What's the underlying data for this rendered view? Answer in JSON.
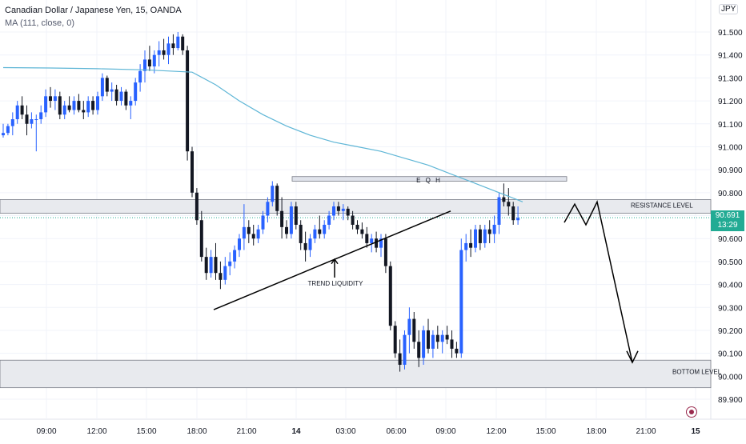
{
  "header": {
    "title": "Canadian Dollar / Japanese Yen, 15, OANDA",
    "indicator": "MA (111, close, 0)",
    "currency": "JPY"
  },
  "price_tag": {
    "price": "90.691",
    "countdown": "13:29",
    "color": "#22ab94"
  },
  "colors": {
    "bull": "#2962ff",
    "bear": "#131722",
    "ma": "#5fb6d6",
    "grid": "#f0f3fa",
    "zone": "#e8eaee"
  },
  "chart_data": {
    "type": "candlestick",
    "title": "Canadian Dollar / Japanese Yen, 15, OANDA",
    "ylim": [
      89.86,
      91.6
    ],
    "y_ticks": [
      "91.500",
      "91.400",
      "91.300",
      "91.200",
      "91.100",
      "91.000",
      "90.900",
      "90.800",
      "90.700",
      "90.600",
      "90.500",
      "90.400",
      "90.300",
      "90.200",
      "90.100",
      "90.000",
      "89.900"
    ],
    "x_ticks": [
      "09:00",
      "12:00",
      "15:00",
      "18:00",
      "21:00",
      "14",
      "03:00",
      "06:00",
      "09:00",
      "12:00",
      "15:00",
      "18:00",
      "21:00",
      "15"
    ],
    "ohlc": [
      [
        91.05,
        91.1,
        91.04,
        91.06
      ],
      [
        91.06,
        91.1,
        91.05,
        91.09
      ],
      [
        91.09,
        91.15,
        91.05,
        91.12
      ],
      [
        91.12,
        91.2,
        91.1,
        91.18
      ],
      [
        91.18,
        91.22,
        91.12,
        91.14
      ],
      [
        91.14,
        91.18,
        91.05,
        91.1
      ],
      [
        91.1,
        91.15,
        91.08,
        91.12
      ],
      [
        91.12,
        91.14,
        90.98,
        91.12
      ],
      [
        91.12,
        91.18,
        91.1,
        91.15
      ],
      [
        91.15,
        91.25,
        91.13,
        91.22
      ],
      [
        91.22,
        91.26,
        91.17,
        91.2
      ],
      [
        91.2,
        91.25,
        91.16,
        91.22
      ],
      [
        91.22,
        91.24,
        91.12,
        91.14
      ],
      [
        91.14,
        91.2,
        91.12,
        91.18
      ],
      [
        91.18,
        91.22,
        91.15,
        91.16
      ],
      [
        91.16,
        91.22,
        91.14,
        91.2
      ],
      [
        91.2,
        91.23,
        91.15,
        91.16
      ],
      [
        91.16,
        91.2,
        91.12,
        91.15
      ],
      [
        91.15,
        91.22,
        91.13,
        91.2
      ],
      [
        91.2,
        91.22,
        91.14,
        91.16
      ],
      [
        91.16,
        91.24,
        91.14,
        91.22
      ],
      [
        91.22,
        91.32,
        91.2,
        91.3
      ],
      [
        91.3,
        91.31,
        91.22,
        91.24
      ],
      [
        91.24,
        91.28,
        91.2,
        91.25
      ],
      [
        91.25,
        91.27,
        91.18,
        91.2
      ],
      [
        91.2,
        91.26,
        91.18,
        91.24
      ],
      [
        91.24,
        91.25,
        91.16,
        91.18
      ],
      [
        91.18,
        91.22,
        91.12,
        91.2
      ],
      [
        91.2,
        91.3,
        91.18,
        91.28
      ],
      [
        91.28,
        91.36,
        91.24,
        91.33
      ],
      [
        91.33,
        91.42,
        91.28,
        91.38
      ],
      [
        91.38,
        91.44,
        91.33,
        91.35
      ],
      [
        91.35,
        91.42,
        91.32,
        91.4
      ],
      [
        91.4,
        91.46,
        91.35,
        91.42
      ],
      [
        91.42,
        91.47,
        91.38,
        91.4
      ],
      [
        91.4,
        91.48,
        91.36,
        91.45
      ],
      [
        91.45,
        91.49,
        91.4,
        91.43
      ],
      [
        91.43,
        91.5,
        91.42,
        91.48
      ],
      [
        91.48,
        91.49,
        91.4,
        91.42
      ],
      [
        91.42,
        91.44,
        90.94,
        90.98
      ],
      [
        90.98,
        91.0,
        90.78,
        90.8
      ],
      [
        90.8,
        90.82,
        90.66,
        90.68
      ],
      [
        90.68,
        90.72,
        90.5,
        90.52
      ],
      [
        90.52,
        90.56,
        90.42,
        90.45
      ],
      [
        90.45,
        90.55,
        90.43,
        90.52
      ],
      [
        90.52,
        90.58,
        90.42,
        90.45
      ],
      [
        90.45,
        90.5,
        90.38,
        90.42
      ],
      [
        90.42,
        90.52,
        90.4,
        90.48
      ],
      [
        90.48,
        90.54,
        90.44,
        90.5
      ],
      [
        90.5,
        90.57,
        90.47,
        90.55
      ],
      [
        90.55,
        90.62,
        90.52,
        90.6
      ],
      [
        90.6,
        90.75,
        90.55,
        90.65
      ],
      [
        90.65,
        90.68,
        90.58,
        90.62
      ],
      [
        90.62,
        90.66,
        90.57,
        90.6
      ],
      [
        90.6,
        90.66,
        90.58,
        90.64
      ],
      [
        90.64,
        90.72,
        90.62,
        90.7
      ],
      [
        90.7,
        90.78,
        90.67,
        90.76
      ],
      [
        90.76,
        90.85,
        90.74,
        90.83
      ],
      [
        90.83,
        90.84,
        90.7,
        90.72
      ],
      [
        90.72,
        90.78,
        90.6,
        90.65
      ],
      [
        90.65,
        90.68,
        90.6,
        90.62
      ],
      [
        90.62,
        90.76,
        90.6,
        90.74
      ],
      [
        90.74,
        90.76,
        90.64,
        90.66
      ],
      [
        90.66,
        90.68,
        90.55,
        90.58
      ],
      [
        90.58,
        90.63,
        90.5,
        90.55
      ],
      [
        90.55,
        90.62,
        90.52,
        90.6
      ],
      [
        90.6,
        90.66,
        90.58,
        90.64
      ],
      [
        90.64,
        90.7,
        90.6,
        90.62
      ],
      [
        90.62,
        90.68,
        90.6,
        90.66
      ],
      [
        90.66,
        90.72,
        90.64,
        90.7
      ],
      [
        90.7,
        90.76,
        90.68,
        90.74
      ],
      [
        90.74,
        90.76,
        90.7,
        90.72
      ],
      [
        90.72,
        90.75,
        90.68,
        90.73
      ],
      [
        90.73,
        90.74,
        90.68,
        90.7
      ],
      [
        90.7,
        90.72,
        90.64,
        90.66
      ],
      [
        90.66,
        90.68,
        90.62,
        90.64
      ],
      [
        90.64,
        90.67,
        90.6,
        90.62
      ],
      [
        90.62,
        90.65,
        90.56,
        90.58
      ],
      [
        90.58,
        90.62,
        90.54,
        90.6
      ],
      [
        90.6,
        90.63,
        90.54,
        90.56
      ],
      [
        90.56,
        90.62,
        90.52,
        90.6
      ],
      [
        90.6,
        90.62,
        90.45,
        90.48
      ],
      [
        90.48,
        90.5,
        90.2,
        90.22
      ],
      [
        90.22,
        90.24,
        90.08,
        90.1
      ],
      [
        90.1,
        90.16,
        90.02,
        90.05
      ],
      [
        90.05,
        90.2,
        90.03,
        90.18
      ],
      [
        90.18,
        90.3,
        90.1,
        90.25
      ],
      [
        90.25,
        90.28,
        90.12,
        90.15
      ],
      [
        90.15,
        90.2,
        90.04,
        90.08
      ],
      [
        90.08,
        90.22,
        90.05,
        90.2
      ],
      [
        90.2,
        90.25,
        90.1,
        90.12
      ],
      [
        90.12,
        90.2,
        90.08,
        90.18
      ],
      [
        90.18,
        90.22,
        90.12,
        90.15
      ],
      [
        90.15,
        90.2,
        90.1,
        90.18
      ],
      [
        90.18,
        90.22,
        90.14,
        90.16
      ],
      [
        90.16,
        90.2,
        90.08,
        90.12
      ],
      [
        90.12,
        90.15,
        90.08,
        90.1
      ],
      [
        90.1,
        90.6,
        90.08,
        90.55
      ],
      [
        90.55,
        90.62,
        90.5,
        90.58
      ],
      [
        90.58,
        90.64,
        90.52,
        90.56
      ],
      [
        90.56,
        90.66,
        90.54,
        90.64
      ],
      [
        90.64,
        90.66,
        90.55,
        90.58
      ],
      [
        90.58,
        90.66,
        90.56,
        90.64
      ],
      [
        90.64,
        90.68,
        90.58,
        90.62
      ],
      [
        90.62,
        90.7,
        90.58,
        90.66
      ],
      [
        90.66,
        90.8,
        90.62,
        90.78
      ],
      [
        90.78,
        90.84,
        90.74,
        90.76
      ],
      [
        90.76,
        90.82,
        90.7,
        90.74
      ],
      [
        90.74,
        90.76,
        90.66,
        90.68
      ],
      [
        90.68,
        90.74,
        90.66,
        90.69
      ]
    ],
    "ma": [
      [
        0,
        91.345
      ],
      [
        10,
        91.343
      ],
      [
        20,
        91.34
      ],
      [
        30,
        91.335
      ],
      [
        40,
        91.325
      ],
      [
        45,
        91.27
      ],
      [
        50,
        91.2
      ],
      [
        55,
        91.14
      ],
      [
        60,
        91.09
      ],
      [
        65,
        91.05
      ],
      [
        70,
        91.02
      ],
      [
        75,
        91.0
      ],
      [
        80,
        90.98
      ],
      [
        85,
        90.95
      ],
      [
        90,
        90.92
      ],
      [
        95,
        90.88
      ],
      [
        100,
        90.84
      ],
      [
        105,
        90.8
      ],
      [
        110,
        90.76
      ]
    ],
    "annotations": {
      "eqh": "E Q H",
      "trend_liquidity": "TREND LIQUIDITY",
      "resistance": "RESISTANCE LEVEL",
      "bottom": "BOTTOM LEVEL"
    },
    "zones": {
      "eqh": [
        90.85,
        90.87
      ],
      "resistance": [
        90.71,
        90.77
      ],
      "bottom": [
        89.95,
        90.07
      ]
    }
  }
}
